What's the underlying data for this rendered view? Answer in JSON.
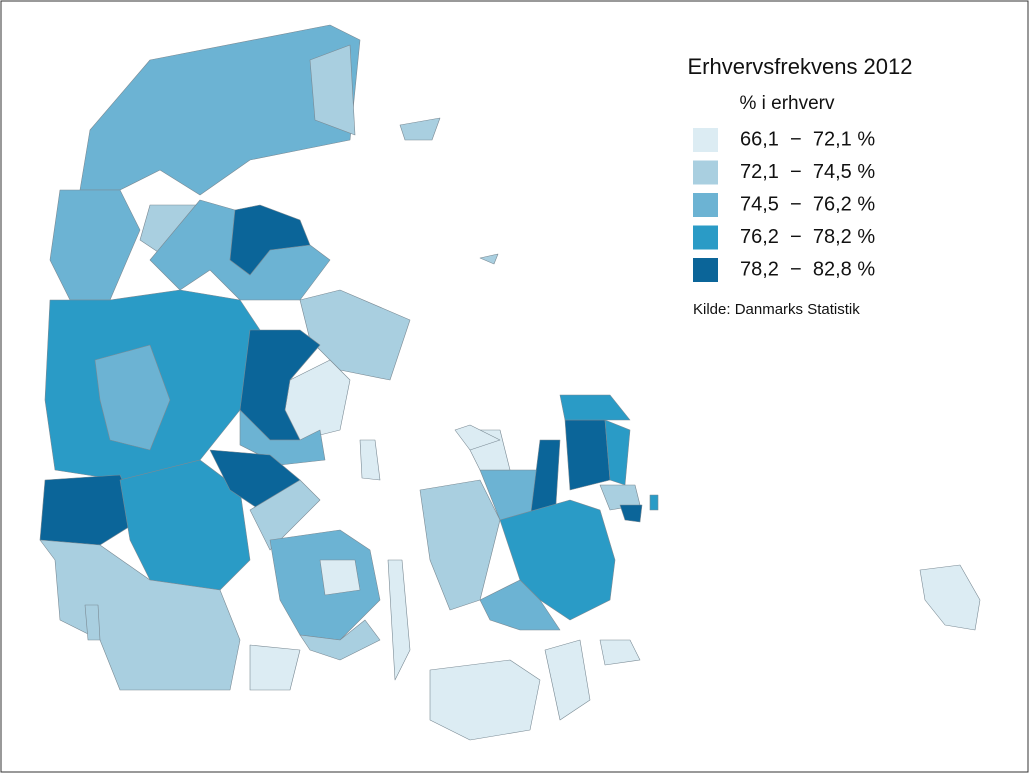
{
  "title": "Erhvervsfrekvens 2012",
  "legend": {
    "title": "% i erhverv",
    "items": [
      {
        "label": "66,1  −  72,1 %",
        "color": "#dcecf3"
      },
      {
        "label": "72,1  −  74,5 %",
        "color": "#a9cfe0"
      },
      {
        "label": "74,5  −  76,2 %",
        "color": "#6cb3d3"
      },
      {
        "label": "76,2  −  78,2 %",
        "color": "#2a9bc6"
      },
      {
        "label": "78,2  −  82,8 %",
        "color": "#0b6599"
      }
    ]
  },
  "source": "Kilde: Danmarks Statistik"
}
